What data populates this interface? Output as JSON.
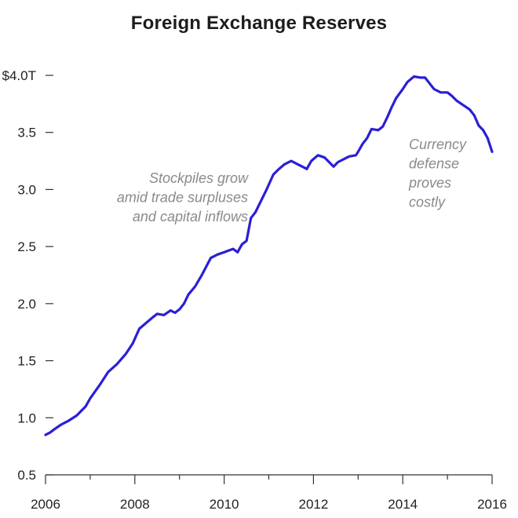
{
  "chart_data": {
    "type": "line",
    "title": "Foreign Exchange Reserves",
    "xlabel": "",
    "ylabel": "",
    "xlim": [
      2006,
      2016
    ],
    "ylim": [
      0.5,
      4.0
    ],
    "x_ticks": [
      2006,
      2008,
      2010,
      2012,
      2014,
      2016
    ],
    "x_tick_labels": [
      "2006",
      "2008",
      "2010",
      "2012",
      "2014",
      "2016"
    ],
    "y_ticks": [
      0.5,
      1.0,
      1.5,
      2.0,
      2.5,
      3.0,
      3.5,
      4.0
    ],
    "y_tick_labels": [
      "0.5",
      "1.0",
      "1.5",
      "2.0",
      "2.5",
      "3.0",
      "3.5",
      "$4.0T"
    ],
    "grid": false,
    "line_color": "#2b1fd6",
    "annotation_color": "#8a8a8a",
    "annotations": [
      {
        "lines": [
          "Stockpiles grow",
          "amid trade surpluses",
          "and capital inflows"
        ]
      },
      {
        "lines": [
          "Currency",
          "defense",
          "proves",
          "costly"
        ]
      }
    ],
    "series": [
      {
        "x": [
          2006.0,
          2006.1,
          2006.2,
          2006.35,
          2006.5,
          2006.7,
          2006.9,
          2007.0,
          2007.2,
          2007.4,
          2007.6,
          2007.8,
          2007.95,
          2008.1,
          2008.25,
          2008.4,
          2008.5,
          2008.65,
          2008.8,
          2008.9,
          2009.0,
          2009.1,
          2009.2,
          2009.35,
          2009.5,
          2009.7,
          2009.85,
          2010.0,
          2010.2,
          2010.3,
          2010.4,
          2010.5,
          2010.6,
          2010.7,
          2010.8,
          2010.95,
          2011.1,
          2011.2,
          2011.35,
          2011.5,
          2011.65,
          2011.75,
          2011.85,
          2011.95,
          2012.1,
          2012.25,
          2012.35,
          2012.45,
          2012.55,
          2012.7,
          2012.8,
          2012.95,
          2013.0,
          2013.1,
          2013.2,
          2013.3,
          2013.45,
          2013.55,
          2013.65,
          2013.75,
          2013.85,
          2014.0,
          2014.1,
          2014.25,
          2014.4,
          2014.5,
          2014.6,
          2014.7,
          2014.85,
          2015.0,
          2015.1,
          2015.2,
          2015.35,
          2015.5,
          2015.6,
          2015.7,
          2015.8,
          2015.9,
          2016.0
        ],
        "y": [
          0.85,
          0.87,
          0.9,
          0.94,
          0.97,
          1.02,
          1.1,
          1.17,
          1.28,
          1.4,
          1.47,
          1.56,
          1.65,
          1.78,
          1.83,
          1.88,
          1.91,
          1.9,
          1.94,
          1.92,
          1.95,
          2.0,
          2.08,
          2.15,
          2.25,
          2.4,
          2.43,
          2.45,
          2.48,
          2.45,
          2.52,
          2.55,
          2.75,
          2.8,
          2.88,
          3.0,
          3.13,
          3.17,
          3.22,
          3.25,
          3.22,
          3.2,
          3.18,
          3.25,
          3.3,
          3.28,
          3.24,
          3.2,
          3.24,
          3.27,
          3.29,
          3.3,
          3.33,
          3.4,
          3.45,
          3.53,
          3.52,
          3.55,
          3.63,
          3.72,
          3.8,
          3.88,
          3.94,
          3.99,
          3.98,
          3.98,
          3.93,
          3.88,
          3.85,
          3.85,
          3.82,
          3.78,
          3.74,
          3.7,
          3.65,
          3.56,
          3.52,
          3.45,
          3.33
        ]
      }
    ]
  }
}
